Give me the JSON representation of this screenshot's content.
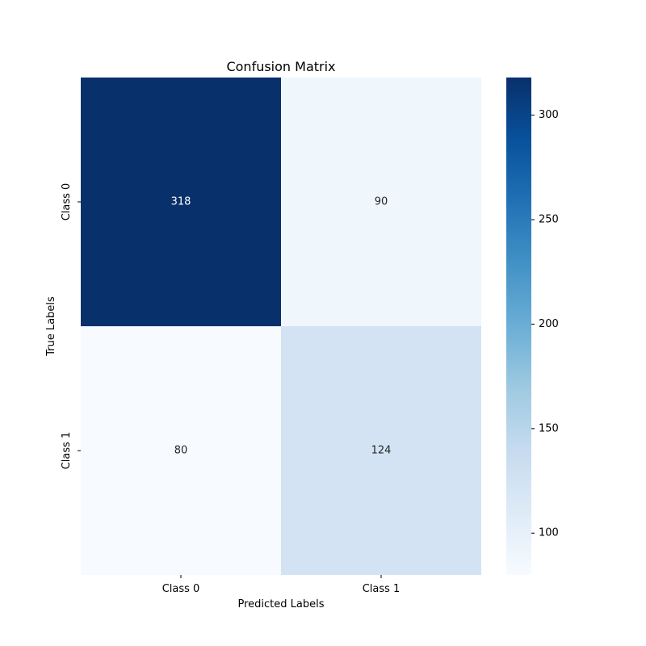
{
  "chart_data": {
    "type": "heatmap",
    "title": "Confusion Matrix",
    "xlabel": "Predicted Labels",
    "ylabel": "True Labels",
    "x_categories": [
      "Class 0",
      "Class 1"
    ],
    "y_categories": [
      "Class 0",
      "Class 1"
    ],
    "values": [
      [
        318,
        90
      ],
      [
        80,
        124
      ]
    ],
    "colormap": "Blues",
    "colorbar": {
      "range": [
        80,
        318
      ],
      "ticks": [
        100,
        150,
        200,
        250,
        300
      ],
      "tick_labels": [
        "100",
        "150",
        "200",
        "250",
        "300"
      ]
    },
    "colors": {
      "low": "#f7fbff",
      "high": "#08306b",
      "text_on_dark": "#ffffff",
      "text_on_light": "#262626"
    },
    "grid": false,
    "legend": "colorbar-right"
  }
}
